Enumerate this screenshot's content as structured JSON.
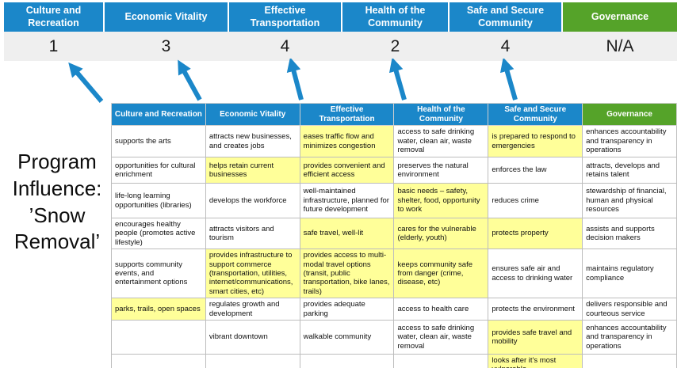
{
  "colors": {
    "blue": "#1b87c9",
    "green": "#55a329",
    "yellow": "#ffff99",
    "score_band": "#efefef",
    "table_border": "#bdbdbd"
  },
  "program_label": "Program Influence: ’Snow Removal’",
  "scoreboard": {
    "items": [
      {
        "label": "Culture and Recreation",
        "score": "1",
        "type": "blue"
      },
      {
        "label": "Economic Vitality",
        "score": "3",
        "type": "blue"
      },
      {
        "label": "Effective Transportation",
        "score": "4",
        "type": "blue"
      },
      {
        "label": "Health of the Community",
        "score": "2",
        "type": "blue"
      },
      {
        "label": "Safe and Secure Community",
        "score": "4",
        "type": "blue"
      },
      {
        "label": "Governance",
        "score": "N/A",
        "type": "green"
      }
    ]
  },
  "matrix": {
    "headers": [
      {
        "label": "Culture and Recreation",
        "type": "blue"
      },
      {
        "label": "Economic Vitality",
        "type": "blue"
      },
      {
        "label": "Effective Transportation",
        "type": "blue"
      },
      {
        "label": "Health of the Community",
        "type": "blue"
      },
      {
        "label": "Safe and Secure Community",
        "type": "blue"
      },
      {
        "label": "Governance",
        "type": "green"
      }
    ],
    "rows": [
      [
        {
          "text": "supports the arts",
          "hl": false
        },
        {
          "text": "attracts new businesses, and creates jobs",
          "hl": false
        },
        {
          "text": "eases traffic flow and minimizes congestion",
          "hl": true
        },
        {
          "text": "access to safe drinking water, clean air, waste removal",
          "hl": false
        },
        {
          "text": "is prepared to respond to emergencies",
          "hl": true
        },
        {
          "text": "enhances accountability and transparency in operations",
          "hl": false
        }
      ],
      [
        {
          "text": "opportunities for cultural enrichment",
          "hl": false
        },
        {
          "text": "helps retain current businesses",
          "hl": true
        },
        {
          "text": "provides convenient and efficient access",
          "hl": true
        },
        {
          "text": "preserves the natural environment",
          "hl": false
        },
        {
          "text": "enforces the law",
          "hl": false
        },
        {
          "text": "attracts, develops and retains talent",
          "hl": false
        }
      ],
      [
        {
          "text": "life-long learning opportunities (libraries)",
          "hl": false
        },
        {
          "text": "develops the workforce",
          "hl": false
        },
        {
          "text": "well-maintained infrastructure, planned for future development",
          "hl": false
        },
        {
          "text": "basic needs – safety, shelter, food, opportunity to work",
          "hl": true
        },
        {
          "text": "reduces crime",
          "hl": false
        },
        {
          "text": "stewardship of financial, human and physical resources",
          "hl": false
        }
      ],
      [
        {
          "text": "encourages healthy people (promotes active lifestyle)",
          "hl": false
        },
        {
          "text": "attracts visitors and tourism",
          "hl": false
        },
        {
          "text": "safe travel, well-lit",
          "hl": true
        },
        {
          "text": "cares for the vulnerable (elderly, youth)",
          "hl": true
        },
        {
          "text": "protects property",
          "hl": true
        },
        {
          "text": "assists and supports decision makers",
          "hl": false
        }
      ],
      [
        {
          "text": "supports community events, and entertainment options",
          "hl": false
        },
        {
          "text": "provides infrastructure to support commerce (transportation, utilities, internet/communications, smart cities, etc)",
          "hl": true
        },
        {
          "text": "provides access to multi-modal travel options (transit, public transportation, bike lanes, trails)",
          "hl": true
        },
        {
          "text": "keeps community safe from danger (crime, disease, etc)",
          "hl": true
        },
        {
          "text": "ensures safe air and access to drinking water",
          "hl": false
        },
        {
          "text": "maintains regulatory compliance",
          "hl": false
        }
      ],
      [
        {
          "text": "parks, trails, open spaces",
          "hl": true
        },
        {
          "text": "regulates growth and development",
          "hl": false
        },
        {
          "text": "provides adequate parking",
          "hl": false
        },
        {
          "text": "access to health care",
          "hl": false
        },
        {
          "text": "protects the environment",
          "hl": false
        },
        {
          "text": "delivers responsible and courteous service",
          "hl": false
        }
      ],
      [
        {
          "text": "",
          "hl": false
        },
        {
          "text": "vibrant downtown",
          "hl": false
        },
        {
          "text": "walkable community",
          "hl": false
        },
        {
          "text": "access to safe drinking water, clean air, waste removal",
          "hl": false
        },
        {
          "text": "provides safe travel and mobility",
          "hl": true
        },
        {
          "text": "enhances accountability and transparency in operations",
          "hl": false
        }
      ],
      [
        {
          "text": "",
          "hl": false
        },
        {
          "text": "",
          "hl": false
        },
        {
          "text": "",
          "hl": false
        },
        {
          "text": "",
          "hl": false
        },
        {
          "text": "looks after it's most vulnerable",
          "hl": true
        },
        {
          "text": "",
          "hl": false
        }
      ]
    ]
  }
}
